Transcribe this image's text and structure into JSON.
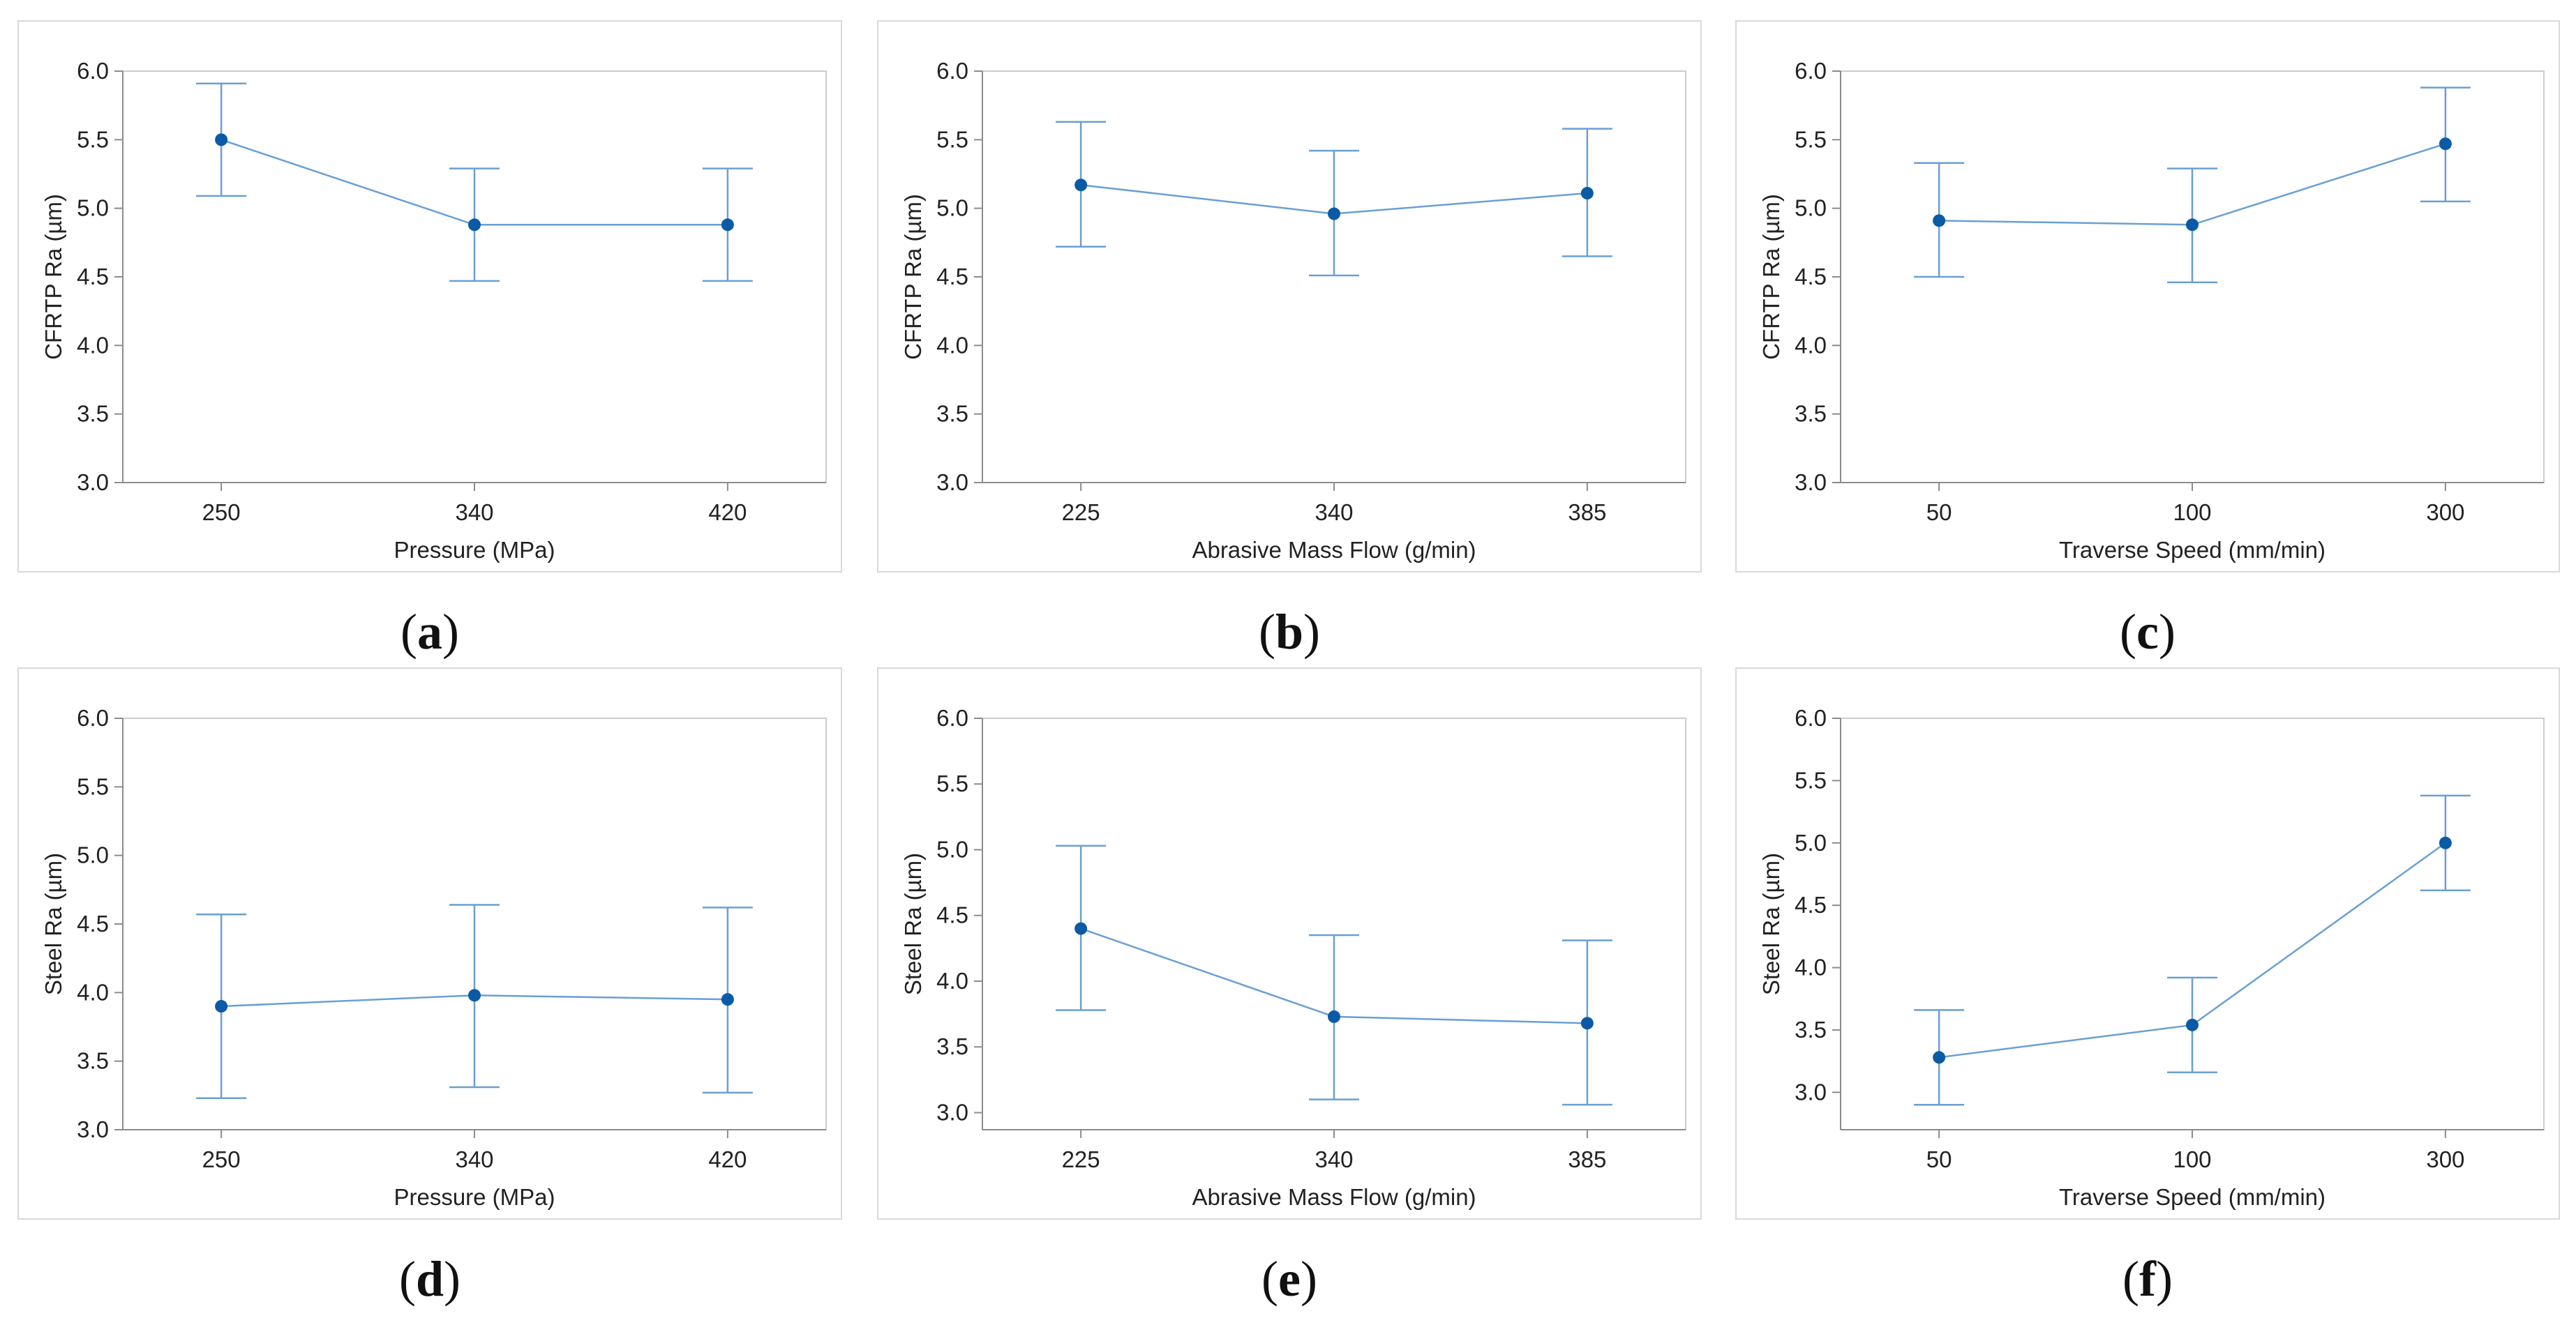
{
  "chart_data": [
    {
      "type": "line",
      "caption": "a",
      "title": "",
      "xlabel": "Pressure (MPa)",
      "ylabel": "CFRTP Ra (µm)",
      "categories": [
        "250",
        "340",
        "420"
      ],
      "values": [
        5.5,
        4.88,
        4.88
      ],
      "error_low": [
        5.09,
        4.47,
        4.47
      ],
      "error_high": [
        5.91,
        5.29,
        5.29
      ],
      "ylim": [
        3.0,
        6.0
      ],
      "yticks": [
        "3.0",
        "3.5",
        "4.0",
        "4.5",
        "5.0",
        "5.5",
        "6.0"
      ],
      "grid": false
    },
    {
      "type": "line",
      "caption": "b",
      "title": "",
      "xlabel": "Abrasive Mass Flow (g/min)",
      "ylabel": "CFRTP Ra (µm)",
      "categories": [
        "225",
        "340",
        "385"
      ],
      "values": [
        5.17,
        4.96,
        5.11
      ],
      "error_low": [
        4.72,
        4.51,
        4.65
      ],
      "error_high": [
        5.63,
        5.42,
        5.58
      ],
      "ylim": [
        3.0,
        6.0
      ],
      "yticks": [
        "3.0",
        "3.5",
        "4.0",
        "4.5",
        "5.0",
        "5.5",
        "6.0"
      ],
      "grid": false
    },
    {
      "type": "line",
      "caption": "c",
      "title": "",
      "xlabel": "Traverse Speed (mm/min)",
      "ylabel": "CFRTP Ra (µm)",
      "categories": [
        "50",
        "100",
        "300"
      ],
      "values": [
        4.91,
        4.88,
        5.47
      ],
      "error_low": [
        4.5,
        4.46,
        5.05
      ],
      "error_high": [
        5.33,
        5.29,
        5.88
      ],
      "ylim": [
        3.0,
        6.0
      ],
      "yticks": [
        "3.0",
        "3.5",
        "4.0",
        "4.5",
        "5.0",
        "5.5",
        "6.0"
      ],
      "grid": false
    },
    {
      "type": "line",
      "caption": "d",
      "title": "",
      "xlabel": "Pressure (MPa)",
      "ylabel": "Steel Ra (µm)",
      "categories": [
        "250",
        "340",
        "420"
      ],
      "values": [
        3.9,
        3.98,
        3.95
      ],
      "error_low": [
        3.23,
        3.31,
        3.27
      ],
      "error_high": [
        4.57,
        4.64,
        4.62
      ],
      "ylim": [
        3.0,
        6.0
      ],
      "yticks": [
        "3.0",
        "3.5",
        "4.0",
        "4.5",
        "5.0",
        "5.5",
        "6.0"
      ],
      "grid": false
    },
    {
      "type": "line",
      "caption": "e",
      "title": "",
      "xlabel": "Abrasive Mass Flow (g/min)",
      "ylabel": "Steel Ra (µm)",
      "categories": [
        "225",
        "340",
        "385"
      ],
      "values": [
        4.4,
        3.73,
        3.68
      ],
      "error_low": [
        3.78,
        3.1,
        3.06
      ],
      "error_high": [
        5.03,
        4.35,
        4.31
      ],
      "ylim": [
        2.87,
        6.0
      ],
      "yticks": [
        "3.0",
        "3.5",
        "4.0",
        "4.5",
        "5.0",
        "5.5",
        "6.0"
      ],
      "grid": false
    },
    {
      "type": "line",
      "caption": "f",
      "title": "",
      "xlabel": "Traverse Speed (mm/min)",
      "ylabel": "Steel Ra (µm)",
      "categories": [
        "50",
        "100",
        "300"
      ],
      "values": [
        3.28,
        3.54,
        5.0
      ],
      "error_low": [
        2.9,
        3.16,
        4.62
      ],
      "error_high": [
        3.66,
        3.92,
        5.38
      ],
      "ylim": [
        2.7,
        6.0
      ],
      "yticks": [
        "3.0",
        "3.5",
        "4.0",
        "4.5",
        "5.0",
        "5.5",
        "6.0"
      ],
      "grid": false
    }
  ]
}
